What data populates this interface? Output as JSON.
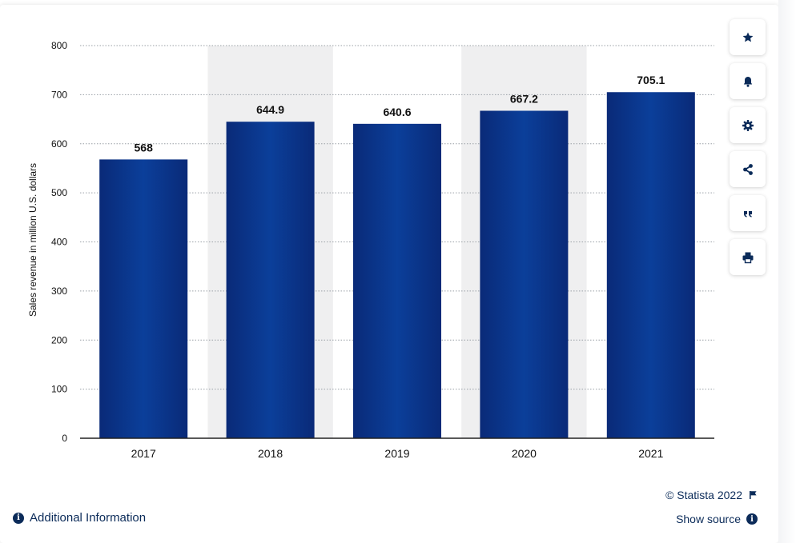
{
  "chart_data": {
    "type": "bar",
    "categories": [
      "2017",
      "2018",
      "2019",
      "2020",
      "2021"
    ],
    "values": [
      568,
      644.9,
      640.6,
      667.2,
      705.1
    ],
    "value_labels": [
      "568",
      "644.9",
      "640.6",
      "667.2",
      "705.1"
    ],
    "title": "",
    "xlabel": "",
    "ylabel": "Sales revenue in million U.S. dollars",
    "ylim": [
      0,
      800
    ],
    "yticks": [
      0,
      100,
      200,
      300,
      400,
      500,
      600,
      700,
      800
    ],
    "grid": true,
    "bar_color": "#0b3f9a",
    "highlight_band_color": "#efeff0"
  },
  "toolbar": [
    {
      "icon": "star-icon",
      "name": "favorite-button"
    },
    {
      "icon": "bell-icon",
      "name": "notification-button"
    },
    {
      "icon": "gear-icon",
      "name": "settings-button"
    },
    {
      "icon": "share-icon",
      "name": "share-button"
    },
    {
      "icon": "quote-icon",
      "name": "cite-button"
    },
    {
      "icon": "print-icon",
      "name": "print-button"
    }
  ],
  "footer": {
    "additional_info": "Additional Information",
    "copyright": "© Statista 2022",
    "show_source": "Show source"
  }
}
